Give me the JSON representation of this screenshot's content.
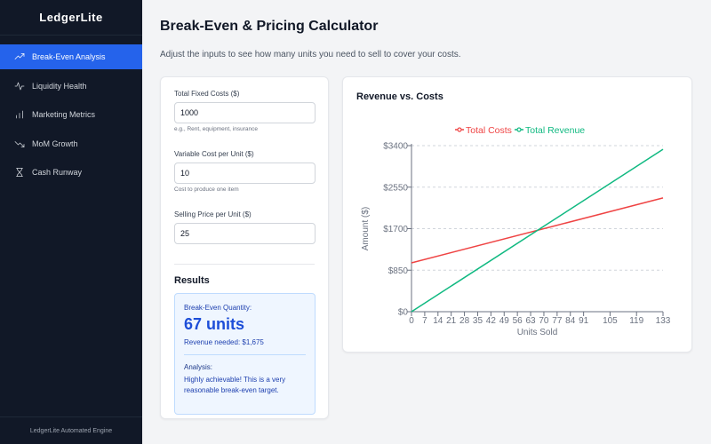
{
  "app": {
    "name": "LedgerLite",
    "footer": "LedgerLite Automated Engine"
  },
  "sidebar": {
    "items": [
      {
        "label": "Break-Even Analysis",
        "icon": "trending-up-icon",
        "active": true
      },
      {
        "label": "Liquidity Health",
        "icon": "pulse-icon",
        "active": false
      },
      {
        "label": "Marketing Metrics",
        "icon": "bar-chart-icon",
        "active": false
      },
      {
        "label": "MoM Growth",
        "icon": "trending-down-icon",
        "active": false
      },
      {
        "label": "Cash Runway",
        "icon": "hourglass-icon",
        "active": false
      }
    ]
  },
  "page": {
    "title": "Break-Even & Pricing Calculator",
    "subtitle": "Adjust the inputs to see how many units you need to sell to cover your costs."
  },
  "inputs": {
    "fixed_costs": {
      "label": "Total Fixed Costs ($)",
      "value": "1000",
      "hint": "e.g., Rent, equipment, insurance"
    },
    "variable_cost": {
      "label": "Variable Cost per Unit ($)",
      "value": "10",
      "hint": "Cost to produce one item"
    },
    "selling_price": {
      "label": "Selling Price per Unit ($)",
      "value": "25"
    }
  },
  "results": {
    "heading": "Results",
    "quantity_label": "Break-Even Quantity:",
    "quantity_value": "67 units",
    "revenue_needed": "Revenue needed: $1,675",
    "analysis_label": "Analysis:",
    "analysis_text": "Highly achievable! This is a very reasonable break-even target."
  },
  "chart_data": {
    "type": "line",
    "title": "Revenue vs. Costs",
    "xlabel": "Units Sold",
    "ylabel": "Amount ($)",
    "x_ticks": [
      0,
      7,
      14,
      21,
      28,
      35,
      42,
      49,
      56,
      63,
      70,
      77,
      84,
      91,
      105,
      119,
      133
    ],
    "y_ticks": [
      "$0",
      "$850",
      "$1700",
      "$2550",
      "$3400"
    ],
    "xlim": [
      0,
      133
    ],
    "ylim": [
      0,
      3400
    ],
    "legend_position": "top-center",
    "grid": true,
    "series": [
      {
        "name": "Total Costs",
        "color": "#ef4444",
        "x": [
          0,
          133
        ],
        "y": [
          1000,
          2330
        ]
      },
      {
        "name": "Total Revenue",
        "color": "#10b981",
        "x": [
          0,
          133
        ],
        "y": [
          0,
          3325
        ]
      }
    ]
  }
}
